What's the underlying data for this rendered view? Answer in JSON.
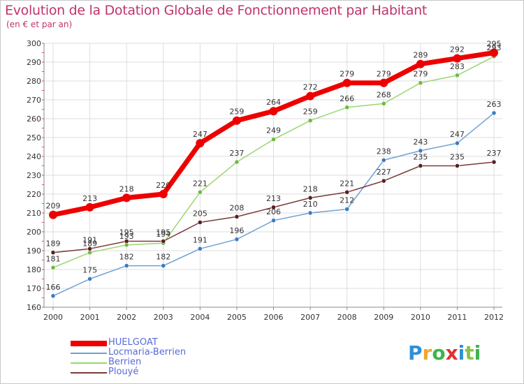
{
  "header": {
    "title": "Evolution de la Dotation Globale de Fonctionnement par Habitant",
    "subtitle": "(en € et par an)"
  },
  "brand": {
    "letters": [
      "P",
      "r",
      "o",
      "x",
      "i",
      "t",
      "i"
    ],
    "colors": [
      "#2f8fd8",
      "#f2a62a",
      "#3ab54a",
      "#e0312f",
      "#2f8fd8",
      "#8bc34a",
      "#3ab54a"
    ]
  },
  "chart_data": {
    "type": "line",
    "title": "Evolution de la Dotation Globale de Fonctionnement par Habitant",
    "subtitle": "(en € et par an)",
    "x": [
      2000,
      2001,
      2002,
      2003,
      2004,
      2005,
      2006,
      2007,
      2008,
      2009,
      2010,
      2011,
      2012
    ],
    "ylim": [
      160,
      300
    ],
    "yticks": [
      160,
      170,
      180,
      190,
      200,
      210,
      220,
      230,
      240,
      250,
      260,
      270,
      280,
      290,
      300
    ],
    "grid": true,
    "legend_position": "bottom-left",
    "series": [
      {
        "name": "Locmaria-Berrien",
        "color": "#6fa0d6",
        "dot": "#3a7cc4",
        "values": [
          166,
          175,
          182,
          182,
          191,
          196,
          206,
          210,
          212,
          238,
          243,
          247,
          263
        ]
      },
      {
        "name": "Berrien",
        "color": "#9ad66f",
        "dot": "#6dbb3c",
        "values": [
          181,
          189,
          193,
          194,
          221,
          237,
          249,
          259,
          266,
          268,
          279,
          283,
          293
        ]
      },
      {
        "name": "Plouyé",
        "color": "#7a3a3a",
        "dot": "#5a1f1f",
        "values": [
          189,
          191,
          195,
          195,
          205,
          208,
          213,
          218,
          221,
          227,
          235,
          235,
          237
        ]
      },
      {
        "name": "HUELGOAT",
        "color": "#ee0000",
        "dot": "#ee0000",
        "values": [
          209,
          213,
          218,
          220,
          247,
          259,
          264,
          272,
          279,
          279,
          289,
          292,
          295
        ]
      }
    ],
    "legend_order": [
      "HUELGOAT",
      "Locmaria-Berrien",
      "Berrien",
      "Plouyé"
    ]
  }
}
